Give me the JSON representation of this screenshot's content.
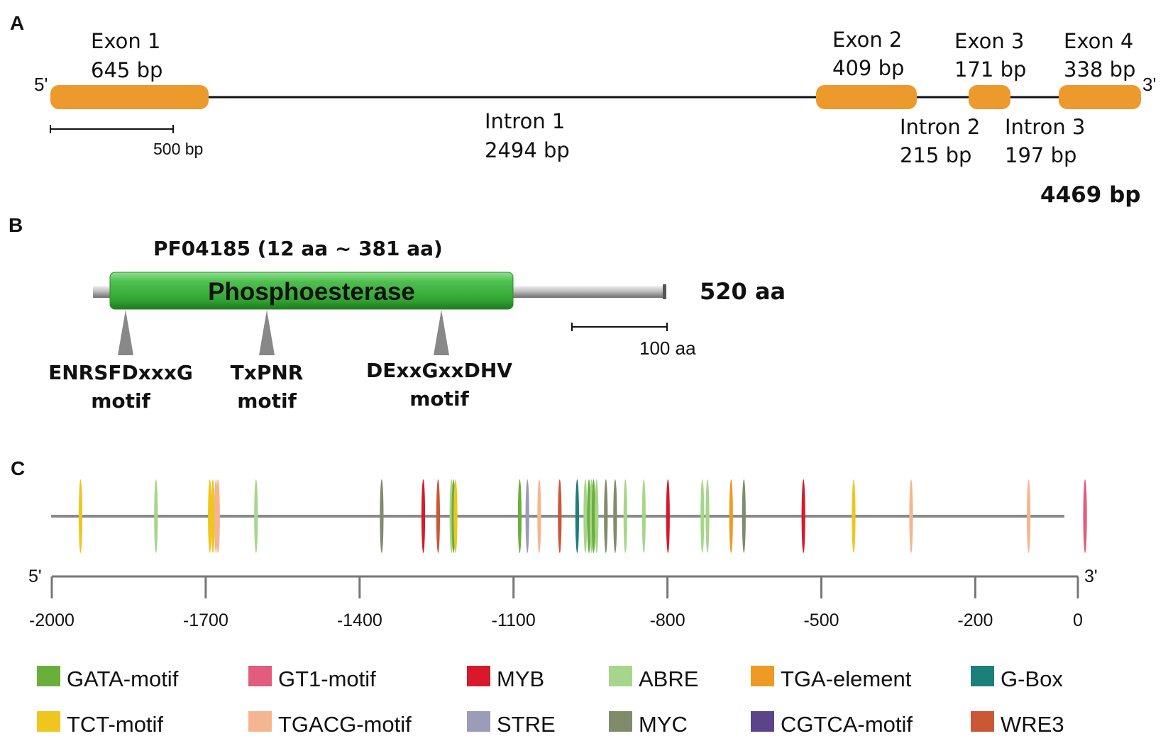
{
  "panel_a": {
    "letter": "A",
    "end5": "5'",
    "end3": "3'",
    "exons": [
      {
        "name": "Exon 1",
        "size": "645 bp"
      },
      {
        "name": "Exon 2",
        "size": "409 bp"
      },
      {
        "name": "Exon 3",
        "size": "171 bp"
      },
      {
        "name": "Exon 4",
        "size": "338 bp"
      }
    ],
    "introns": [
      {
        "name": "Intron 1",
        "size": "2494 bp"
      },
      {
        "name": "Intron 2",
        "size": "215 bp"
      },
      {
        "name": "Intron 3",
        "size": "197 bp"
      }
    ],
    "scale_label": "500 bp",
    "total": "4469 bp",
    "colors": {
      "exon": "#ED9A2D",
      "line": "#111111"
    }
  },
  "panel_b": {
    "letter": "B",
    "domain_id": "PF04185 (12 aa ~ 381 aa)",
    "domain_name": "Phosphoesterase",
    "length": "520 aa",
    "scale_label": "100 aa",
    "motifs": [
      {
        "line1": "ENRSFDxxxG",
        "line2": "motif"
      },
      {
        "line1": "TxPNR",
        "line2": "motif"
      },
      {
        "line1": "DExxGxxDHV",
        "line2": "motif"
      }
    ],
    "colors": {
      "domain": "#3FB33F",
      "backbone": "#A8A8A8",
      "arrow": "#888888"
    }
  },
  "panel_c": {
    "letter": "C",
    "end5": "5'",
    "end3": "3'",
    "axis_ticks": [
      "-2000",
      "-1700",
      "-1400",
      "-1100",
      "-800",
      "-500",
      "-200",
      "0"
    ],
    "legend": [
      {
        "name": "GATA-motif",
        "color": "#6AAE3C"
      },
      {
        "name": "GT1-motif",
        "color": "#E25C7E"
      },
      {
        "name": "MYB",
        "color": "#D7192B"
      },
      {
        "name": "ABRE",
        "color": "#A6D68A"
      },
      {
        "name": "TGA-element",
        "color": "#EE9A24"
      },
      {
        "name": "G-Box",
        "color": "#1A8079"
      },
      {
        "name": "TCT-motif",
        "color": "#EFC61F"
      },
      {
        "name": "TGACG-motif",
        "color": "#F5B68F"
      },
      {
        "name": "STRE",
        "color": "#9A9CB8"
      },
      {
        "name": "MYC",
        "color": "#7F8B6B"
      },
      {
        "name": "CGTCA-motif",
        "color": "#5B448A"
      },
      {
        "name": "WRE3",
        "color": "#CB5736"
      }
    ],
    "elements": [
      {
        "pos": -1944,
        "type": "TCT-motif"
      },
      {
        "pos": -1797,
        "type": "ABRE"
      },
      {
        "pos": -1692,
        "type": "TCT-motif"
      },
      {
        "pos": -1686,
        "type": "TCT-motif"
      },
      {
        "pos": -1680,
        "type": "TGACG-motif"
      },
      {
        "pos": -1676,
        "type": "TGACG-motif"
      },
      {
        "pos": -1602,
        "type": "ABRE"
      },
      {
        "pos": -1357,
        "type": "MYC"
      },
      {
        "pos": -1276,
        "type": "MYB"
      },
      {
        "pos": -1247,
        "type": "WRE3"
      },
      {
        "pos": -1221,
        "type": "ABRE"
      },
      {
        "pos": -1217,
        "type": "GATA-motif"
      },
      {
        "pos": -1213,
        "type": "TCT-motif"
      },
      {
        "pos": -1088,
        "type": "GATA-motif"
      },
      {
        "pos": -1073,
        "type": "STRE"
      },
      {
        "pos": -1050,
        "type": "TGACG-motif"
      },
      {
        "pos": -1010,
        "type": "WRE3"
      },
      {
        "pos": -976,
        "type": "G-Box"
      },
      {
        "pos": -960,
        "type": "ABRE"
      },
      {
        "pos": -953,
        "type": "GATA-motif"
      },
      {
        "pos": -948,
        "type": "ABRE"
      },
      {
        "pos": -944,
        "type": "GATA-motif"
      },
      {
        "pos": -938,
        "type": "ABRE"
      },
      {
        "pos": -920,
        "type": "MYC"
      },
      {
        "pos": -902,
        "type": "MYC"
      },
      {
        "pos": -882,
        "type": "ABRE"
      },
      {
        "pos": -846,
        "type": "ABRE"
      },
      {
        "pos": -799,
        "type": "MYB"
      },
      {
        "pos": -732,
        "type": "ABRE"
      },
      {
        "pos": -722,
        "type": "ABRE"
      },
      {
        "pos": -676,
        "type": "TGA-element"
      },
      {
        "pos": -651,
        "type": "MYC"
      },
      {
        "pos": -535,
        "type": "MYB"
      },
      {
        "pos": -437,
        "type": "TCT-motif"
      },
      {
        "pos": -325,
        "type": "TGACG-motif"
      },
      {
        "pos": -96,
        "type": "TGACG-motif"
      },
      {
        "pos": 14,
        "type": "GT1-motif"
      }
    ]
  }
}
